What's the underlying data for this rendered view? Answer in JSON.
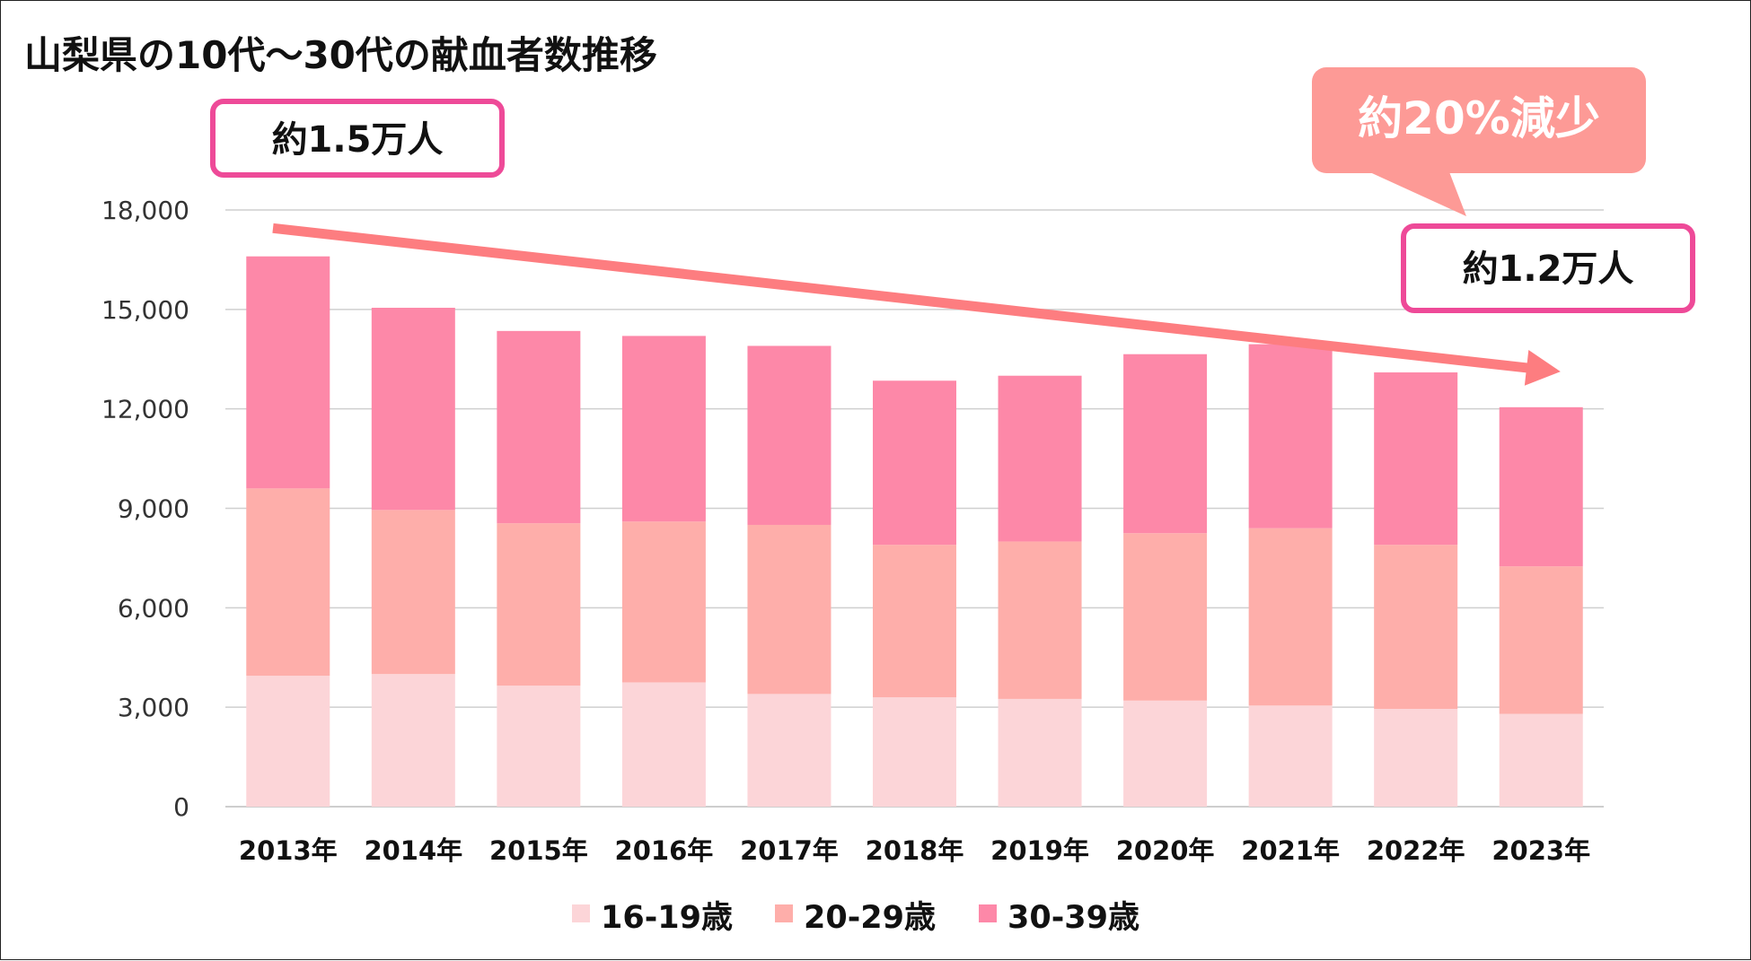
{
  "chart_data": {
    "type": "bar",
    "stacked": true,
    "title": "山梨県の10代～30代の献血者数推移",
    "categories": [
      "2013年",
      "2014年",
      "2015年",
      "2016年",
      "2017年",
      "2018年",
      "2019年",
      "2020年",
      "2021年",
      "2022年",
      "2023年"
    ],
    "series": [
      {
        "name": "16-19歳",
        "color": "#fcd5d8",
        "values": [
          3950,
          4000,
          3650,
          3750,
          3400,
          3300,
          3250,
          3200,
          3050,
          2950,
          2800
        ]
      },
      {
        "name": "20-29歳",
        "color": "#feaeaa",
        "values": [
          5650,
          4950,
          4900,
          4850,
          5100,
          4600,
          4750,
          5050,
          5350,
          4950,
          4450
        ]
      },
      {
        "name": "30-39歳",
        "color": "#fd88a8",
        "values": [
          7000,
          6100,
          5800,
          5600,
          5400,
          4950,
          5000,
          5400,
          5550,
          5200,
          4800
        ]
      }
    ],
    "ylim": [
      0,
      18000
    ],
    "yticks": [
      0,
      3000,
      6000,
      9000,
      12000,
      15000,
      18000
    ],
    "ytick_labels": [
      "0",
      "3,000",
      "6,000",
      "9,000",
      "12,000",
      "15,000",
      "18,000"
    ],
    "xlabel": "",
    "ylabel": "",
    "gridlines": true,
    "legend_position": "bottom",
    "annotations": {
      "start_box": "約1.5万人",
      "end_box": "約1.2万人",
      "callout": "約20%減少",
      "box_border_color": "#ee4a98",
      "callout_color": "#fd9a96",
      "trend_arrow_color": "#fd7d80",
      "trend_start_value": 17450,
      "trend_end_value": 13200
    }
  }
}
